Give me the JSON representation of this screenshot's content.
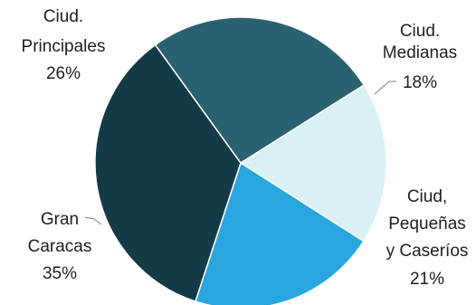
{
  "chart_data": {
    "type": "pie",
    "title": "",
    "slices": [
      {
        "label": [
          "Ciud.",
          "Medianas"
        ],
        "value": 18,
        "display": "18%",
        "color": "#d9f0f7"
      },
      {
        "label": [
          "Ciud,",
          "Pequeñas",
          "y Caseríos"
        ],
        "value": 21,
        "display": "21%",
        "color": "#29a6de"
      },
      {
        "label": [
          "Gran",
          "Caracas"
        ],
        "value": 35,
        "display": "35%",
        "color": "#133a47"
      },
      {
        "label": [
          "Ciud.",
          "Principales"
        ],
        "value": 26,
        "display": "26%",
        "color": "#2a6170"
      }
    ],
    "legend": "none"
  }
}
